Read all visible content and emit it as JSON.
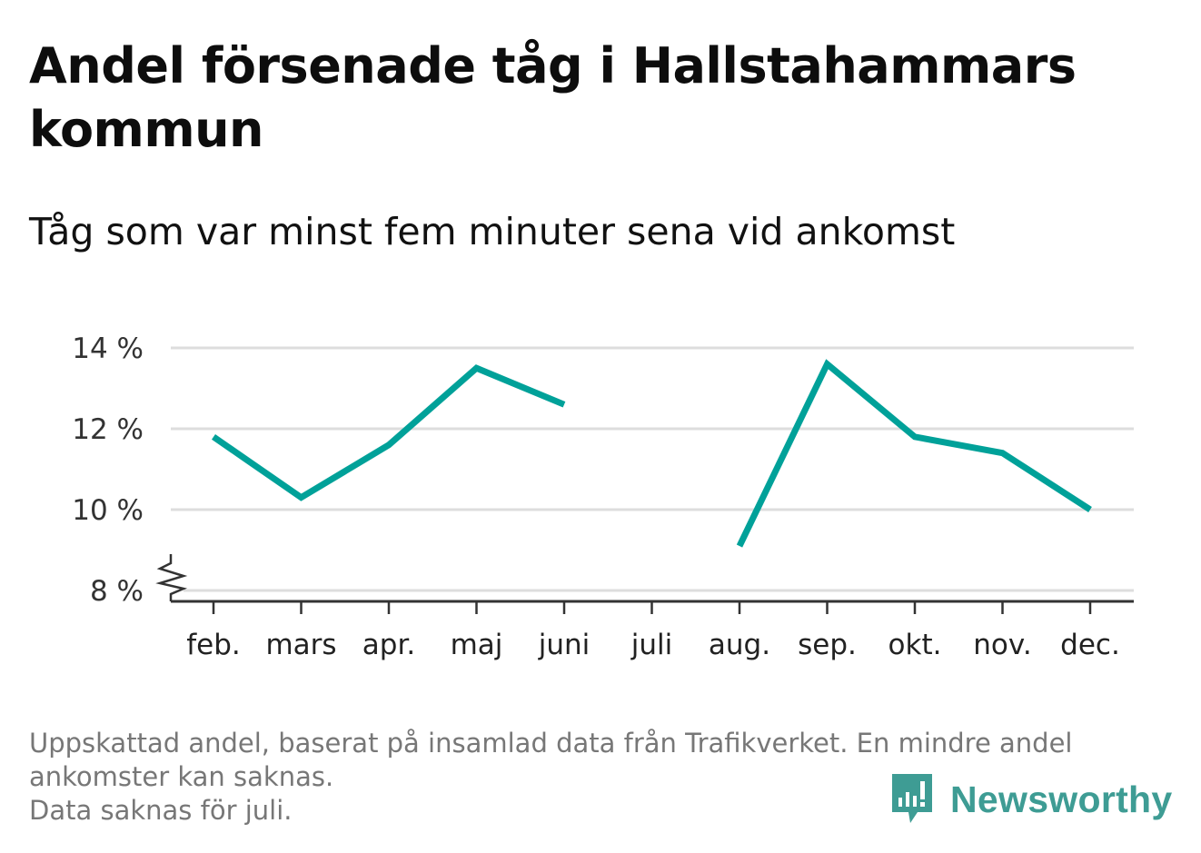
{
  "header": {
    "title": "Andel försenade tåg i Hallstahammars kommun",
    "subtitle": "Tåg som var minst fem minuter sena vid ankomst"
  },
  "footer": {
    "note_lines": [
      "Uppskattad andel, baserat på insamlad data från Trafikverket. En mindre andel",
      "ankomster kan saknas.",
      "Data saknas för juli."
    ],
    "brand": "Newsworthy"
  },
  "colors": {
    "line": "#00a199",
    "grid": "#dddddd",
    "axis": "#333333",
    "brand": "#3e9c94"
  },
  "chart_data": {
    "type": "line",
    "title": "Andel försenade tåg i Hallstahammars kommun",
    "subtitle": "Tåg som var minst fem minuter sena vid ankomst",
    "categories": [
      "feb.",
      "mars",
      "apr.",
      "maj",
      "juni",
      "juli",
      "aug.",
      "sep.",
      "okt.",
      "nov.",
      "dec."
    ],
    "series": [
      {
        "values": [
          11.8,
          10.3,
          11.6,
          13.5,
          12.6,
          null,
          9.1,
          13.6,
          11.8,
          11.4,
          10.0
        ]
      }
    ],
    "y_ticks": [
      8,
      10,
      12,
      14
    ],
    "y_tick_labels": [
      "8 %",
      "10 %",
      "12 %",
      "14 %"
    ],
    "ylim": [
      8,
      14
    ],
    "y_axis_break": true,
    "grid": true,
    "legend": "none",
    "missing": "juli"
  }
}
